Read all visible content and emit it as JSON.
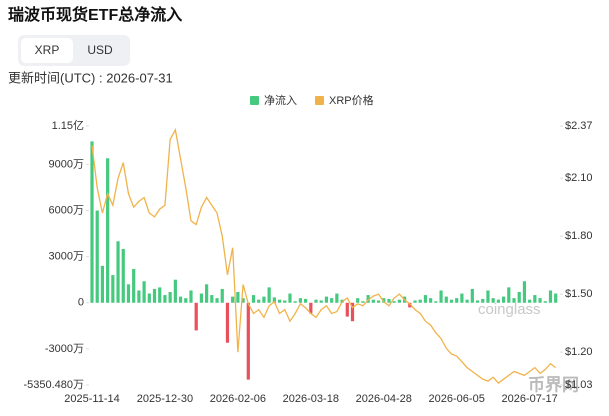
{
  "title": "瑞波币现货ETF总净流入",
  "tabs": [
    "XRP",
    "USD"
  ],
  "updated": "更新时间(UTC) : 2026-07-31",
  "chart_data": {
    "type": "bar",
    "categories": [
      "2025-11-14",
      null,
      null,
      null,
      null,
      null,
      null,
      null,
      null,
      null,
      null,
      null,
      null,
      null,
      "2025-12-30",
      null,
      null,
      null,
      null,
      null,
      null,
      null,
      null,
      null,
      null,
      null,
      null,
      null,
      "2026-02-06",
      null,
      null,
      null,
      null,
      null,
      null,
      null,
      null,
      null,
      null,
      null,
      null,
      null,
      "2026-03-18",
      null,
      null,
      null,
      null,
      null,
      null,
      null,
      null,
      null,
      null,
      null,
      null,
      null,
      "2026-04-28",
      null,
      null,
      null,
      null,
      null,
      null,
      null,
      null,
      null,
      null,
      null,
      null,
      null,
      "2026-06-05",
      null,
      null,
      null,
      null,
      null,
      null,
      null,
      null,
      null,
      null,
      null,
      null,
      null,
      "2026-07-17",
      null,
      null,
      null,
      null,
      null
    ],
    "series": [
      {
        "name": "净流入",
        "color": "#45c97f",
        "negative_color": "#e8505b",
        "values": [
          10500,
          6000,
          2400,
          9400,
          1800,
          4000,
          3500,
          1200,
          2200,
          800,
          1400,
          600,
          900,
          1000,
          500,
          700,
          1500,
          400,
          300,
          800,
          -1800,
          600,
          1200,
          500,
          300,
          900,
          -2600,
          400,
          700,
          300,
          -5000,
          500,
          200,
          400,
          1000,
          350,
          200,
          150,
          600,
          100,
          300,
          250,
          -700,
          200,
          150,
          400,
          300,
          600,
          200,
          -900,
          -1200,
          300,
          100,
          500,
          200,
          150,
          300,
          250,
          100,
          200,
          400,
          -300,
          150,
          200,
          500,
          300,
          100,
          800,
          400,
          200,
          300,
          600,
          200,
          900,
          150,
          250,
          800,
          300,
          200,
          400,
          1000,
          300,
          700,
          1400,
          200,
          500,
          300,
          100,
          800,
          600
        ]
      },
      {
        "name": "XRP价格",
        "color": "#f1b24a",
        "axis": "y2",
        "type": "line",
        "values": [
          2.27,
          2.05,
          1.92,
          2.02,
          1.96,
          2.1,
          2.18,
          2.02,
          1.95,
          1.98,
          2.0,
          1.92,
          1.9,
          1.94,
          1.96,
          2.3,
          2.35,
          2.2,
          2.05,
          1.88,
          1.86,
          1.95,
          2.0,
          1.96,
          1.92,
          1.8,
          1.6,
          1.74,
          1.2,
          1.55,
          1.45,
          1.4,
          1.42,
          1.38,
          1.44,
          1.46,
          1.4,
          1.42,
          1.36,
          1.4,
          1.45,
          1.43,
          1.4,
          1.38,
          1.42,
          1.44,
          1.4,
          1.41,
          1.46,
          1.48,
          1.43,
          1.45,
          1.44,
          1.47,
          1.49,
          1.5,
          1.46,
          1.44,
          1.48,
          1.5,
          1.47,
          1.45,
          1.42,
          1.4,
          1.36,
          1.34,
          1.3,
          1.27,
          1.22,
          1.19,
          1.18,
          1.15,
          1.12,
          1.1,
          1.08,
          1.06,
          1.05,
          1.07,
          1.04,
          1.06,
          1.08,
          1.1,
          1.09,
          1.08,
          1.1,
          1.12,
          1.09,
          1.11,
          1.14,
          1.12
        ]
      }
    ],
    "ylim": [
      -5350.48,
      11500
    ],
    "yticks": [
      {
        "value": 11500,
        "label": "1.15亿"
      },
      {
        "value": 9000,
        "label": "9000万"
      },
      {
        "value": 6000,
        "label": "6000万"
      },
      {
        "value": 3000,
        "label": "3000万"
      },
      0,
      {
        "value": -3000,
        "label": "-3000万"
      },
      {
        "value": -5350.48,
        "label": "-5350.480万"
      }
    ],
    "y2lim": [
      1.03,
      2.37
    ],
    "y2ticks": [
      {
        "value": 2.37,
        "label": "$2.37"
      },
      {
        "value": 2.1,
        "label": "$2.10"
      },
      {
        "value": 1.8,
        "label": "$1.80"
      },
      {
        "value": 1.5,
        "label": "$1.50"
      },
      {
        "value": 1.2,
        "label": "$1.20"
      },
      {
        "value": 1.03,
        "label": "$1.03"
      }
    ],
    "watermarks": [
      "coinglass",
      "币界网"
    ]
  }
}
